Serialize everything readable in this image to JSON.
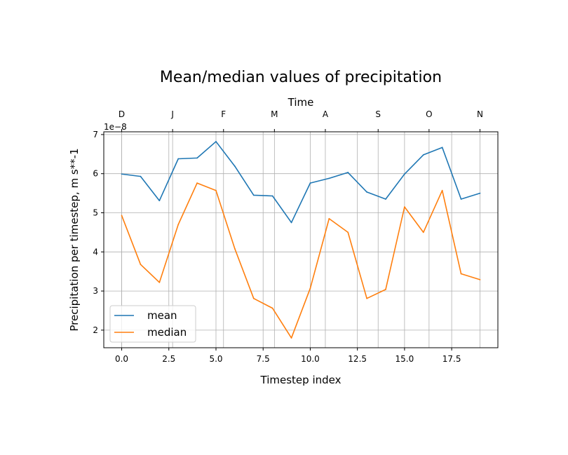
{
  "chart_data": {
    "type": "line",
    "title": "Mean/median values of precipitation",
    "xlabel": "Timestep index",
    "ylabel": "Precipitation per timestep, m s**-1",
    "top_xlabel": "Time",
    "y_offset_label": "1e−8",
    "xlim": [
      -0.95,
      19.95
    ],
    "ylim": [
      1.55,
      7.07
    ],
    "x_ticks": [
      0.0,
      2.5,
      5.0,
      7.5,
      10.0,
      12.5,
      15.0,
      17.5
    ],
    "x_tick_labels": [
      "0.0",
      "2.5",
      "5.0",
      "7.5",
      "10.0",
      "12.5",
      "15.0",
      "17.5"
    ],
    "y_ticks": [
      2,
      3,
      4,
      5,
      6,
      7
    ],
    "y_tick_labels": [
      "2",
      "3",
      "4",
      "5",
      "6",
      "7"
    ],
    "top_ticks": [
      0,
      2.7,
      5.4,
      8.1,
      10.8,
      13.6,
      16.3,
      19
    ],
    "top_tick_labels": [
      "D",
      "J",
      "F",
      "M",
      "A",
      "S",
      "O",
      "N"
    ],
    "grid": true,
    "legend_position": "lower-left",
    "x": [
      0,
      1,
      2,
      3,
      4,
      5,
      6,
      7,
      8,
      9,
      10,
      11,
      12,
      13,
      14,
      15,
      16,
      17,
      18,
      19
    ],
    "series": [
      {
        "name": "mean",
        "color": "#1f77b4",
        "values": [
          5.99,
          5.93,
          5.31,
          6.38,
          6.4,
          6.82,
          6.19,
          5.45,
          5.43,
          4.75,
          5.76,
          5.88,
          6.03,
          5.53,
          5.35,
          5.99,
          6.48,
          6.67,
          5.35,
          5.5
        ]
      },
      {
        "name": "median",
        "color": "#ff7f0e",
        "values": [
          4.93,
          3.68,
          3.22,
          4.7,
          5.76,
          5.57,
          4.08,
          2.81,
          2.56,
          1.8,
          3.07,
          4.85,
          4.5,
          2.81,
          3.04,
          5.15,
          4.5,
          5.57,
          3.44,
          3.29
        ]
      }
    ]
  }
}
